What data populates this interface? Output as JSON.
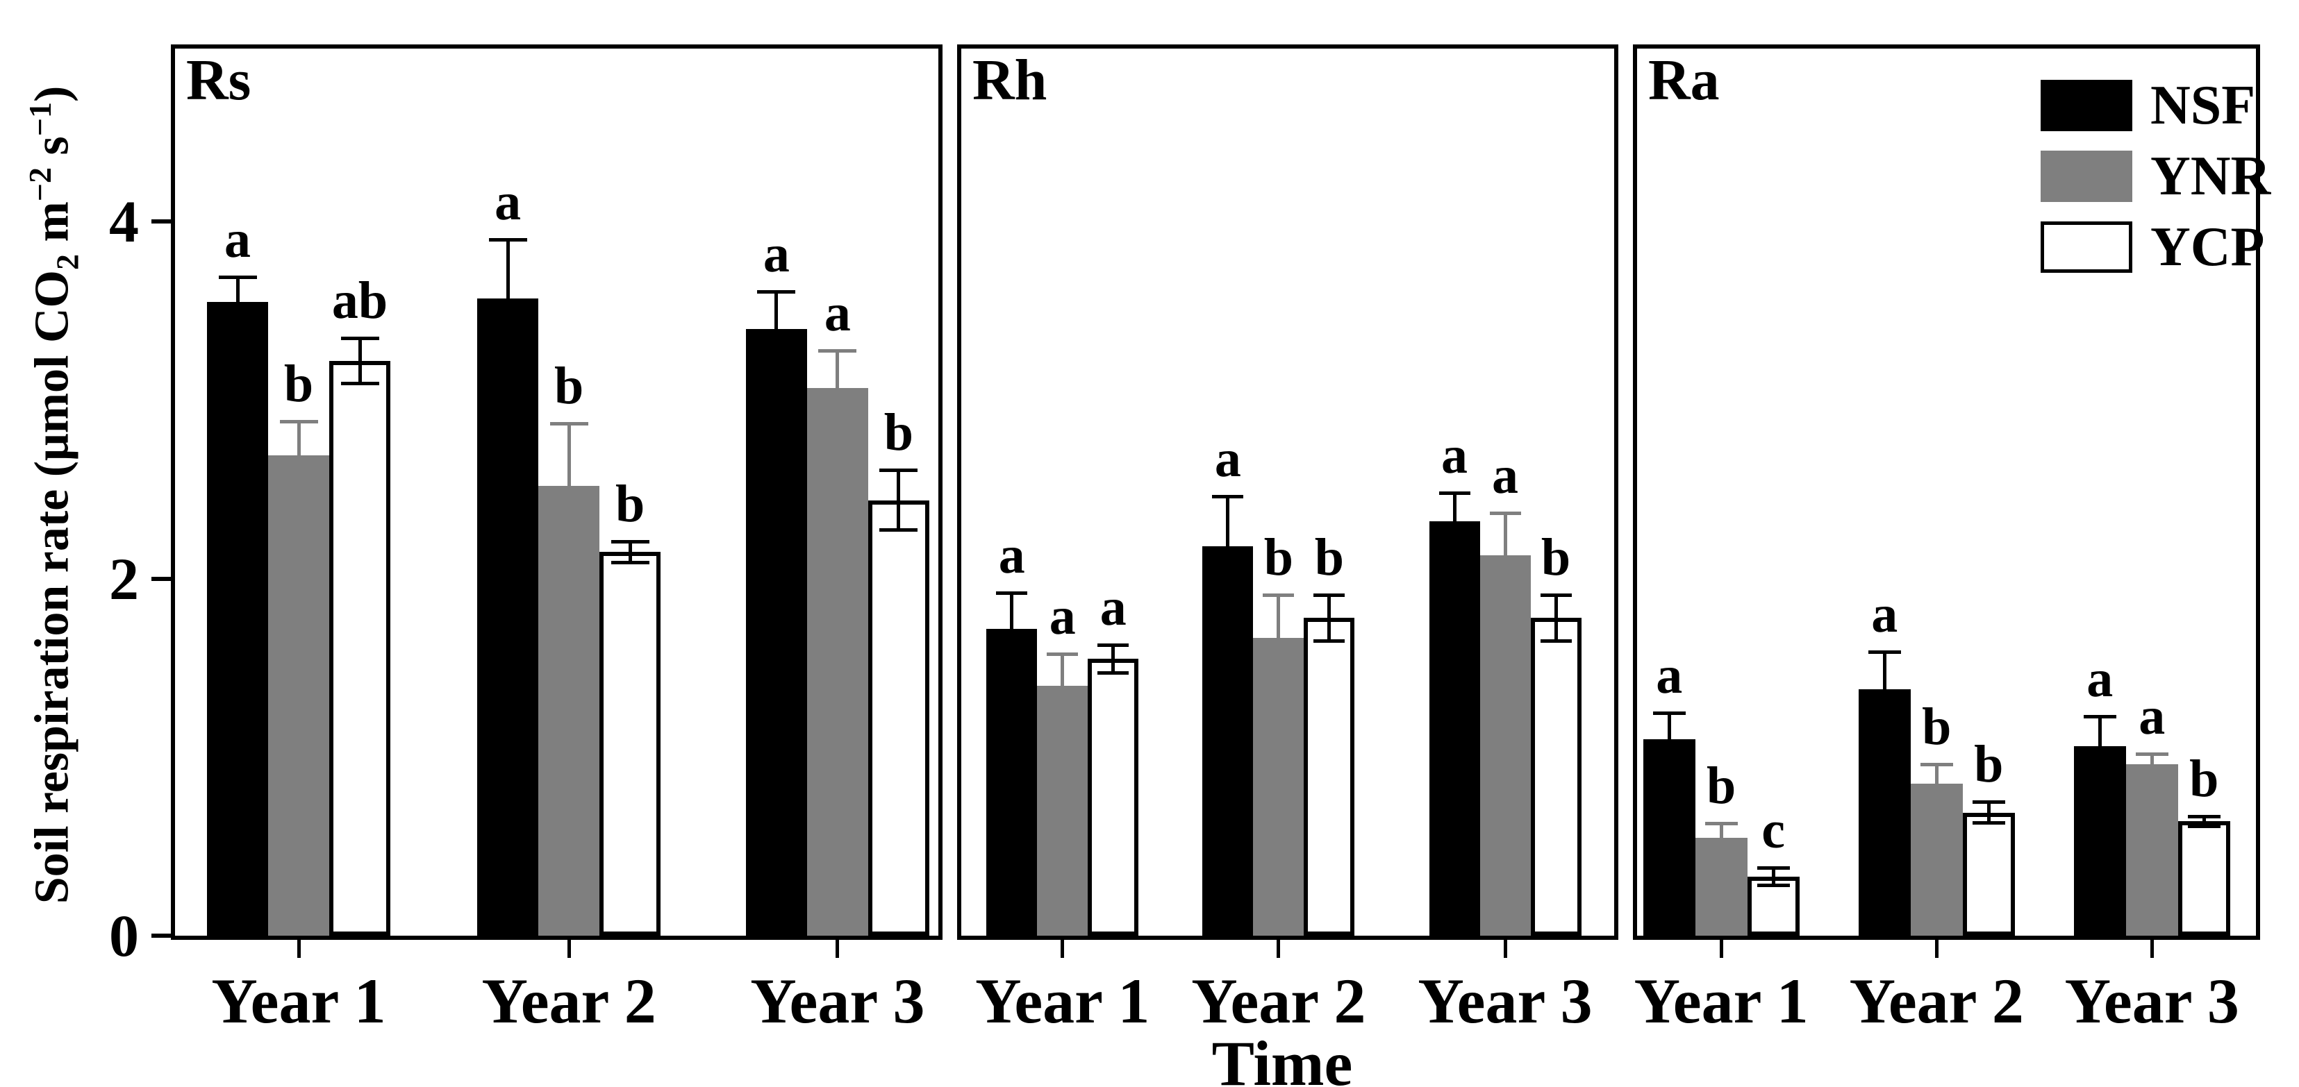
{
  "axes": {
    "ylabel_prefix": "Soil respiration rate (μmol CO",
    "ylabel_sub": "2",
    "ylabel_mid1": " m",
    "ylabel_sup1": "−2",
    "ylabel_mid2": " s",
    "ylabel_sup2": "−1",
    "ylabel_suffix": ")",
    "xlabel": "Time"
  },
  "legend": {
    "position": "top-right",
    "entries": [
      {
        "label": "NSF",
        "color": "#000000",
        "border": "#000000"
      },
      {
        "label": "YNR",
        "color": "#7f7f7f",
        "border": "#7f7f7f"
      },
      {
        "label": "YCP",
        "color": "#ffffff",
        "border": "#000000"
      }
    ]
  },
  "chart_data": {
    "type": "bar",
    "title": "",
    "xlabel": "Time",
    "ylabel": "Soil respiration rate (μmol CO2 m−2 s−1)",
    "categories": [
      "Year 1",
      "Year 2",
      "Year 3"
    ],
    "yticks": [
      0,
      2,
      4
    ],
    "ylim": [
      0,
      4.97
    ],
    "grid": false,
    "legend_position": "top-right",
    "error_bars": "plus-minus, one-sided visible on filled bars",
    "panels": [
      {
        "label": "Rs",
        "series": [
          {
            "name": "NSF",
            "color": "#000000",
            "error_color": "#000000",
            "two_sided_error": false,
            "values": [
              3.55,
              3.57,
              3.4
            ],
            "errors": [
              0.14,
              0.33,
              0.21
            ],
            "sig_letters": [
              "a",
              "a",
              "a"
            ]
          },
          {
            "name": "YNR",
            "color": "#7f7f7f",
            "error_color": "#7f7f7f",
            "two_sided_error": false,
            "values": [
              2.69,
              2.52,
              3.07
            ],
            "errors": [
              0.19,
              0.35,
              0.21
            ],
            "sig_letters": [
              "b",
              "b",
              "a"
            ]
          },
          {
            "name": "YCP",
            "color": "#ffffff",
            "border_color": "#000000",
            "error_color": "#000000",
            "two_sided_error": true,
            "values": [
              3.22,
              2.15,
              2.44
            ],
            "errors": [
              0.13,
              0.06,
              0.17
            ],
            "sig_letters": [
              "ab",
              "b",
              "b"
            ]
          }
        ]
      },
      {
        "label": "Rh",
        "series": [
          {
            "name": "NSF",
            "color": "#000000",
            "error_color": "#000000",
            "two_sided_error": false,
            "values": [
              1.72,
              2.18,
              2.32
            ],
            "errors": [
              0.2,
              0.28,
              0.16
            ],
            "sig_letters": [
              "a",
              "a",
              "a"
            ]
          },
          {
            "name": "YNR",
            "color": "#7f7f7f",
            "error_color": "#7f7f7f",
            "two_sided_error": false,
            "values": [
              1.4,
              1.67,
              2.13
            ],
            "errors": [
              0.18,
              0.24,
              0.24
            ],
            "sig_letters": [
              "a",
              "b",
              "a"
            ]
          },
          {
            "name": "YCP",
            "color": "#ffffff",
            "border_color": "#000000",
            "error_color": "#000000",
            "two_sided_error": true,
            "values": [
              1.55,
              1.78,
              1.78
            ],
            "errors": [
              0.08,
              0.13,
              0.13
            ],
            "sig_letters": [
              "a",
              "b",
              "b"
            ]
          }
        ]
      },
      {
        "label": "Ra",
        "series": [
          {
            "name": "NSF",
            "color": "#000000",
            "error_color": "#000000",
            "two_sided_error": false,
            "values": [
              1.1,
              1.38,
              1.06
            ],
            "errors": [
              0.15,
              0.21,
              0.17
            ],
            "sig_letters": [
              "a",
              "a",
              "a"
            ]
          },
          {
            "name": "YNR",
            "color": "#7f7f7f",
            "error_color": "#7f7f7f",
            "two_sided_error": false,
            "values": [
              0.55,
              0.85,
              0.96
            ],
            "errors": [
              0.08,
              0.11,
              0.06
            ],
            "sig_letters": [
              "b",
              "b",
              "a"
            ]
          },
          {
            "name": "YCP",
            "color": "#ffffff",
            "border_color": "#000000",
            "error_color": "#000000",
            "two_sided_error": true,
            "values": [
              0.33,
              0.69,
              0.64
            ],
            "errors": [
              0.05,
              0.06,
              0.03
            ],
            "sig_letters": [
              "c",
              "b",
              "b"
            ]
          }
        ]
      }
    ]
  }
}
